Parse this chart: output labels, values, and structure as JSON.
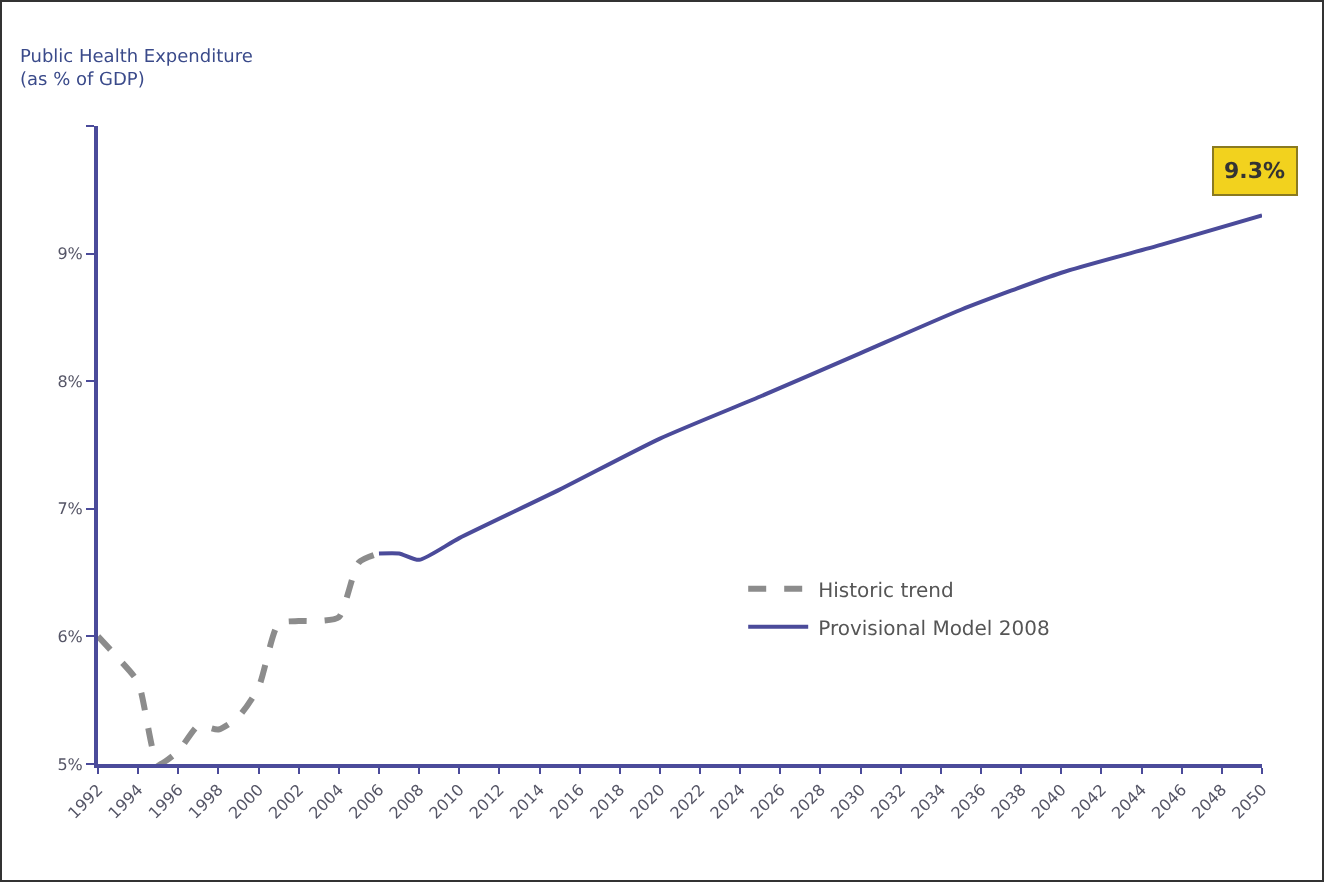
{
  "chart_data": {
    "type": "line",
    "title": "Public Health Expenditure\n(as % of GDP)",
    "series": [
      {
        "name": "Historic trend",
        "color": "#8c8c8c",
        "line_style": "dashed",
        "x": [
          1992,
          1993,
          1994,
          1995,
          1996,
          1997,
          1998,
          1999,
          2000,
          2001,
          2002,
          2003,
          2004,
          2005,
          2006
        ],
        "values": [
          6.0,
          5.83,
          5.64,
          5.0,
          5.1,
          5.3,
          5.27,
          5.37,
          5.6,
          6.1,
          6.12,
          6.12,
          6.15,
          6.58,
          6.65
        ]
      },
      {
        "name": "Provisional Model 2008",
        "color": "#4b4b9a",
        "line_style": "solid",
        "x": [
          2006,
          2007,
          2008,
          2010,
          2015,
          2020,
          2025,
          2030,
          2035,
          2040,
          2045,
          2050
        ],
        "values": [
          6.65,
          6.65,
          6.6,
          6.77,
          7.15,
          7.55,
          7.88,
          8.22,
          8.56,
          8.85,
          9.07,
          9.3
        ]
      }
    ],
    "xlim": [
      1992,
      2050
    ],
    "xticks": [
      1992,
      1994,
      1996,
      1998,
      2000,
      2002,
      2004,
      2006,
      2008,
      2010,
      2012,
      2014,
      2016,
      2018,
      2020,
      2022,
      2024,
      2026,
      2028,
      2030,
      2032,
      2034,
      2036,
      2038,
      2040,
      2042,
      2044,
      2046,
      2048,
      2050
    ],
    "ylim": [
      5,
      10
    ],
    "yticks": [
      {
        "value": 5,
        "label": "5%"
      },
      {
        "value": 6,
        "label": "6%"
      },
      {
        "value": 7,
        "label": "7%"
      },
      {
        "value": 8,
        "label": "8%"
      },
      {
        "value": 9,
        "label": "9%"
      },
      {
        "value": 10,
        "label": null
      }
    ],
    "annotations": [
      {
        "text": "9.3%",
        "x": 2050,
        "y": 9.3
      }
    ],
    "grid": false,
    "legend": "bottom right",
    "marker": "none"
  }
}
